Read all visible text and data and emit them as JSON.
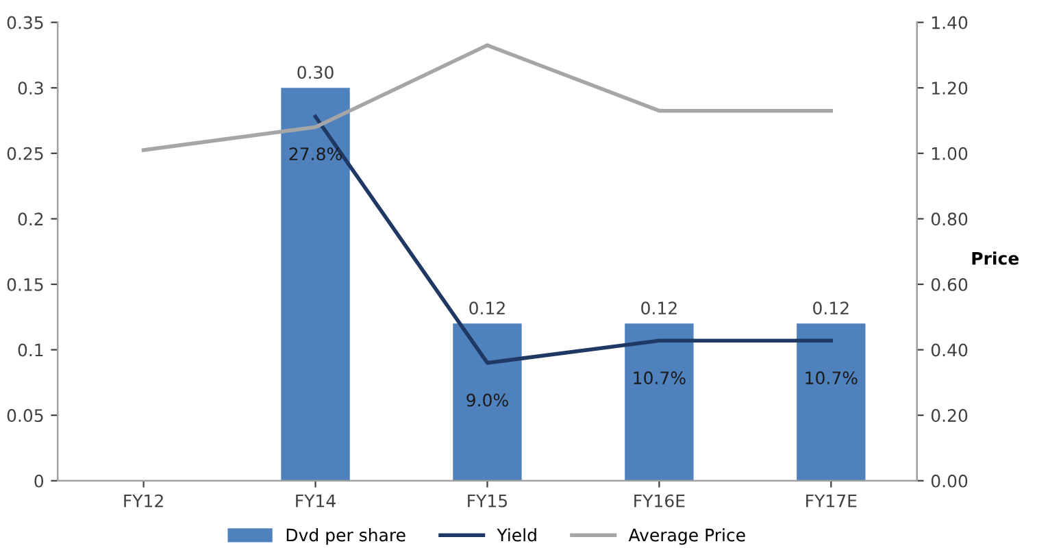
{
  "chart_data": {
    "type": "bar",
    "categories": [
      "FY12",
      "FY14",
      "FY15",
      "FY16E",
      "FY17E"
    ],
    "series": [
      {
        "name": "Dvd per share",
        "color": "#4f81bd",
        "values": [
          null,
          0.3,
          0.12,
          0.12,
          0.12
        ],
        "value_labels": [
          null,
          "0.30",
          "0.12",
          "0.12",
          "0.12"
        ]
      },
      {
        "name": "Yield",
        "type": "line",
        "color": "#1f3864",
        "values": [
          null,
          0.278,
          0.09,
          0.107,
          0.107
        ],
        "value_labels": [
          null,
          "27.8%",
          "9.0%",
          "10.7%",
          "10.7%"
        ]
      },
      {
        "name": "Average Price",
        "type": "line",
        "color": "#a6a6a6",
        "axis": "y2",
        "values": [
          1.01,
          1.08,
          1.33,
          1.13,
          1.13
        ]
      }
    ],
    "ylim": [
      0,
      0.35
    ],
    "yticks": [
      0,
      0.05,
      {
        "value": 0.1,
        "label": "0.1"
      },
      0.15,
      {
        "value": 0.2,
        "label": "0.2"
      },
      0.25,
      {
        "value": 0.3,
        "label": "0.3"
      },
      0.35
    ],
    "y2lim": [
      0,
      1.4
    ],
    "y2ticks": [
      {
        "value": 0,
        "label": "0.00"
      },
      {
        "value": 0.2,
        "label": "0.20"
      },
      {
        "value": 0.4,
        "label": "0.40"
      },
      {
        "value": 0.6,
        "label": "0.60"
      },
      {
        "value": 0.8,
        "label": "0.80"
      },
      {
        "value": 1.0,
        "label": "1.00"
      },
      {
        "value": 1.2,
        "label": "1.20"
      },
      {
        "value": 1.4,
        "label": "1.40"
      }
    ],
    "y2label": "Price",
    "grid": false,
    "legend": "bottom"
  }
}
